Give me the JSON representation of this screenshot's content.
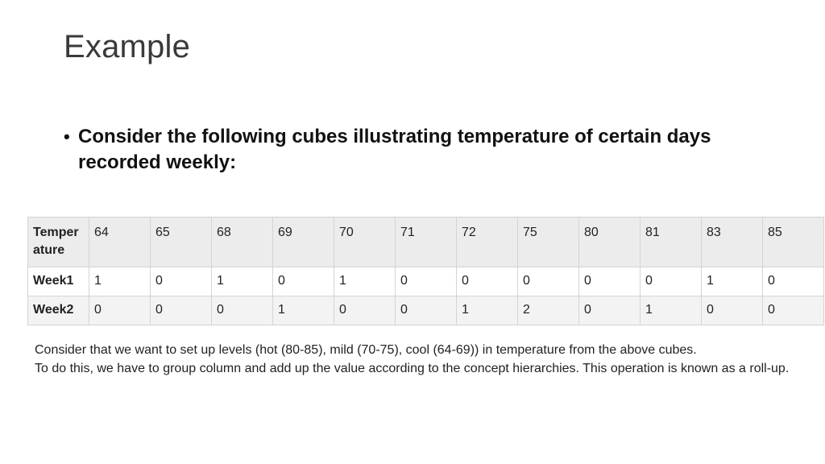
{
  "slide": {
    "title": "Example",
    "bullet": "Consider the following cubes illustrating temperature of certain days recorded weekly:"
  },
  "table": {
    "header_label": "Temperature",
    "temperatures": [
      "64",
      "65",
      "68",
      "69",
      "70",
      "71",
      "72",
      "75",
      "80",
      "81",
      "83",
      "85"
    ],
    "rows": [
      {
        "label": "Week1",
        "values": [
          "1",
          "0",
          "1",
          "0",
          "1",
          "0",
          "0",
          "0",
          "0",
          "0",
          "1",
          "0"
        ]
      },
      {
        "label": "Week2",
        "values": [
          "0",
          "0",
          "0",
          "1",
          "0",
          "0",
          "1",
          "2",
          "0",
          "1",
          "0",
          "0"
        ]
      }
    ]
  },
  "note": {
    "line1": "Consider that we want to set up levels (hot (80-85), mild (70-75), cool (64-69)) in temperature from the above cubes.",
    "line2": "To do this, we have to group column and add up the value according to the concept hierarchies. This operation is known as a roll-up."
  }
}
